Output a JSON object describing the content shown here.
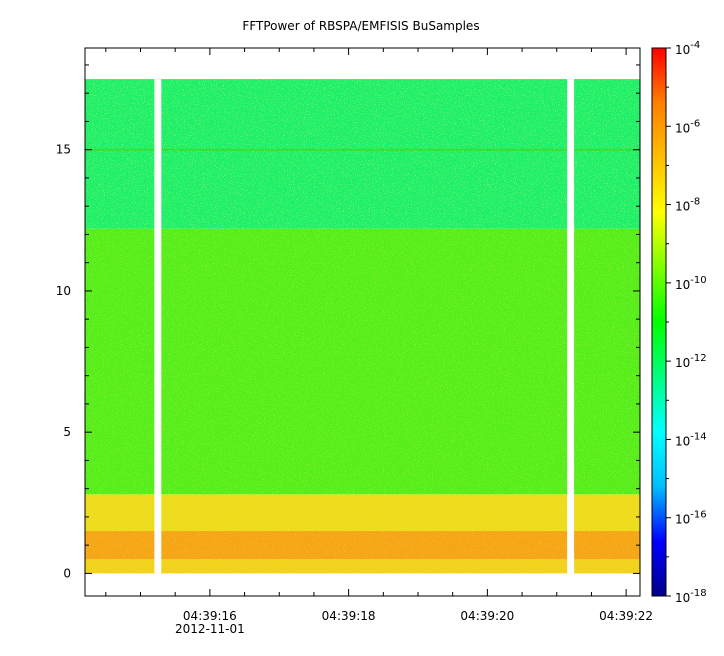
{
  "chart_data": {
    "type": "heatmap",
    "title": "FFTPower of RBSPA/EMFISIS  BuSamples",
    "xlabel": "",
    "ylabel": "",
    "x_ticks": [
      "04:39:16",
      "04:39:18",
      "04:39:20",
      "04:39:22"
    ],
    "x_date_label": "2012-11-01",
    "x_range_seconds": [
      14.2,
      22.2
    ],
    "y_ticks": [
      "0",
      "5",
      "10",
      "15"
    ],
    "y_values": [
      0,
      5,
      10,
      15
    ],
    "ylim": [
      -0.8,
      18.6
    ],
    "data_y_max": 17.5,
    "data_gaps_seconds": [
      [
        15.2,
        15.3
      ],
      [
        21.15,
        21.25
      ]
    ],
    "colorbar": {
      "scale": "log",
      "range": [
        1e-18,
        0.0001
      ],
      "tick_values": [
        0.0001,
        1e-06,
        1e-08,
        1e-10,
        1e-12,
        1e-14,
        1e-16,
        1e-18
      ],
      "tick_exponents": [
        "-4",
        "-6",
        "-8",
        "-10",
        "-12",
        "-14",
        "-16",
        "-18"
      ],
      "tick_base": "10",
      "colormap": [
        "#00008b",
        "#0000ff",
        "#00bfff",
        "#00ffff",
        "#00ff7f",
        "#00ff00",
        "#7fff00",
        "#ffff00",
        "#ffbf00",
        "#ff7f00",
        "#ff0000"
      ]
    },
    "bands": [
      {
        "y_range": [
          0,
          0.5
        ],
        "level": "1e-8",
        "color": "#f2d21a"
      },
      {
        "y_range": [
          0.5,
          1.5
        ],
        "level": "1e-7",
        "color": "#f5a514"
      },
      {
        "y_range": [
          1.5,
          2.8
        ],
        "level": "1e-8",
        "color": "#eedc1e"
      },
      {
        "y_range": [
          2.8,
          12.2
        ],
        "level": "1e-10",
        "color": "#55ee1e"
      },
      {
        "y_range": [
          12.2,
          17.5
        ],
        "level": "1e-12",
        "color": "#1ef06a"
      }
    ],
    "line_feature": {
      "y": 15.0,
      "color": "#33dd33"
    }
  }
}
